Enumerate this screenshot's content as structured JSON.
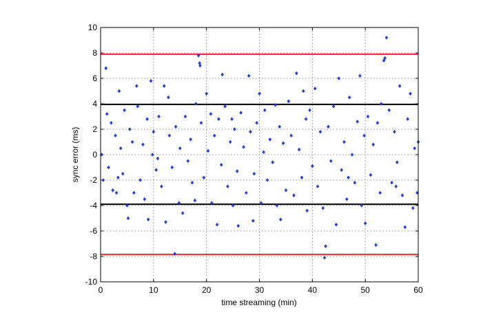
{
  "chart_data": {
    "type": "scatter",
    "x_label": "time streaming (min)",
    "y_label": "sync error (ms)",
    "xlim": [
      0,
      60
    ],
    "xticks": [
      0,
      10,
      20,
      30,
      40,
      50,
      60
    ],
    "ylim": [
      -10,
      10
    ],
    "yticks": [
      -10,
      -8,
      -6,
      -4,
      -2,
      0,
      2,
      4,
      6,
      8,
      10
    ],
    "grid": true,
    "color": "#1c3ce8",
    "reference_lines": [
      {
        "value": 7.9,
        "color": "#e8262b"
      },
      {
        "value": -7.85,
        "color": "#e8262b"
      },
      {
        "value": 3.95,
        "color": "#000000"
      },
      {
        "value": -3.9,
        "color": "#000000"
      }
    ],
    "x": [
      0.2,
      0.5,
      1,
      1.2,
      1.5,
      2,
      2.3,
      2.8,
      3,
      3.5,
      3.8,
      4.2,
      4.5,
      5,
      5.2,
      5.5,
      6,
      6.3,
      6.8,
      7,
      7.5,
      8,
      8.3,
      8.8,
      9,
      9.5,
      9.8,
      10,
      10.5,
      11,
      11.5,
      12,
      12.3,
      12.8,
      13,
      13.5,
      14,
      14.2,
      14.8,
      15,
      15.5,
      16,
      16.5,
      17,
      17.3,
      17.8,
      18,
      18.5,
      18.7,
      18.8,
      19,
      19.5,
      20,
      20.3,
      20.8,
      21,
      21.5,
      22,
      22.3,
      22.8,
      23,
      23.5,
      24,
      24.5,
      25,
      25.3,
      25.8,
      26,
      26.5,
      27,
      27.5,
      28,
      28.3,
      28.8,
      29,
      29.5,
      30,
      30.3,
      30.8,
      31,
      31.5,
      32,
      32.5,
      33,
      33.3,
      33.8,
      34,
      34.5,
      35,
      35.5,
      36,
      36.5,
      37,
      37.5,
      38,
      38.3,
      38.8,
      39,
      39.5,
      40,
      40.5,
      41,
      41.5,
      42,
      42.3,
      42.5,
      43,
      43.5,
      44,
      44.5,
      45,
      45.5,
      46,
      46.5,
      47,
      47.5,
      48,
      48.5,
      49,
      49.3,
      49.8,
      50,
      50.5,
      51,
      51.5,
      52,
      52.3,
      52.8,
      53,
      53.5,
      53.7,
      54,
      54.5,
      55,
      55.5,
      56,
      56.5,
      57,
      57.5,
      58,
      58.5,
      59,
      59.3,
      59.8,
      60,
      55.8,
      3.3,
      10.8,
      24.8,
      46.8
    ],
    "values": [
      0,
      -2,
      6.8,
      3.2,
      -1,
      2.5,
      -2.8,
      1.5,
      -3,
      5,
      0.5,
      -1.5,
      3.5,
      -4,
      -5,
      2,
      1,
      -3,
      5.4,
      3.8,
      -2,
      0.8,
      -3.5,
      2.8,
      -5.1,
      5.8,
      0,
      1.8,
      -1.2,
      3,
      -2.5,
      5.4,
      -5.3,
      4.5,
      1.5,
      -1,
      -7.8,
      2.2,
      -3.8,
      0.5,
      -4.6,
      3,
      -0.5,
      1.2,
      -2.2,
      -3.6,
      4,
      7.8,
      7.2,
      7,
      2.5,
      -1.8,
      4.8,
      0.3,
      3.2,
      -3.8,
      1.5,
      -5.5,
      2.8,
      -0.8,
      6.3,
      3.8,
      -2.5,
      1,
      -4,
      2,
      -1.3,
      -5.6,
      3.3,
      0.6,
      -3,
      6.2,
      1.8,
      -5.2,
      -1.5,
      2.5,
      4.8,
      -3.8,
      0.2,
      3.5,
      -2,
      1.2,
      -0.6,
      3.9,
      -4,
      2.2,
      -5.1,
      0.9,
      -2.8,
      4.2,
      1.5,
      -3.2,
      6.4,
      0.4,
      -1.8,
      5,
      2.8,
      -4.4,
      3.5,
      -0.9,
      5.2,
      -2.5,
      1.8,
      -4.2,
      -8.1,
      -7.2,
      2.2,
      -0.5,
      3.8,
      -5.5,
      6,
      -1.2,
      1,
      -3.5,
      4.5,
      0,
      -2.2,
      2.6,
      6.2,
      -4,
      1.5,
      -5.4,
      3,
      -1.6,
      0.8,
      -7.1,
      2.5,
      -3,
      4,
      7.4,
      7.6,
      9.2,
      3.5,
      -2.2,
      1.8,
      -0.6,
      5.4,
      -3.2,
      -5.7,
      2.8,
      4.8,
      -4.2,
      0.5,
      -3,
      1,
      -2.5,
      -1.8,
      -0.3,
      2.8,
      -1.8
    ]
  }
}
